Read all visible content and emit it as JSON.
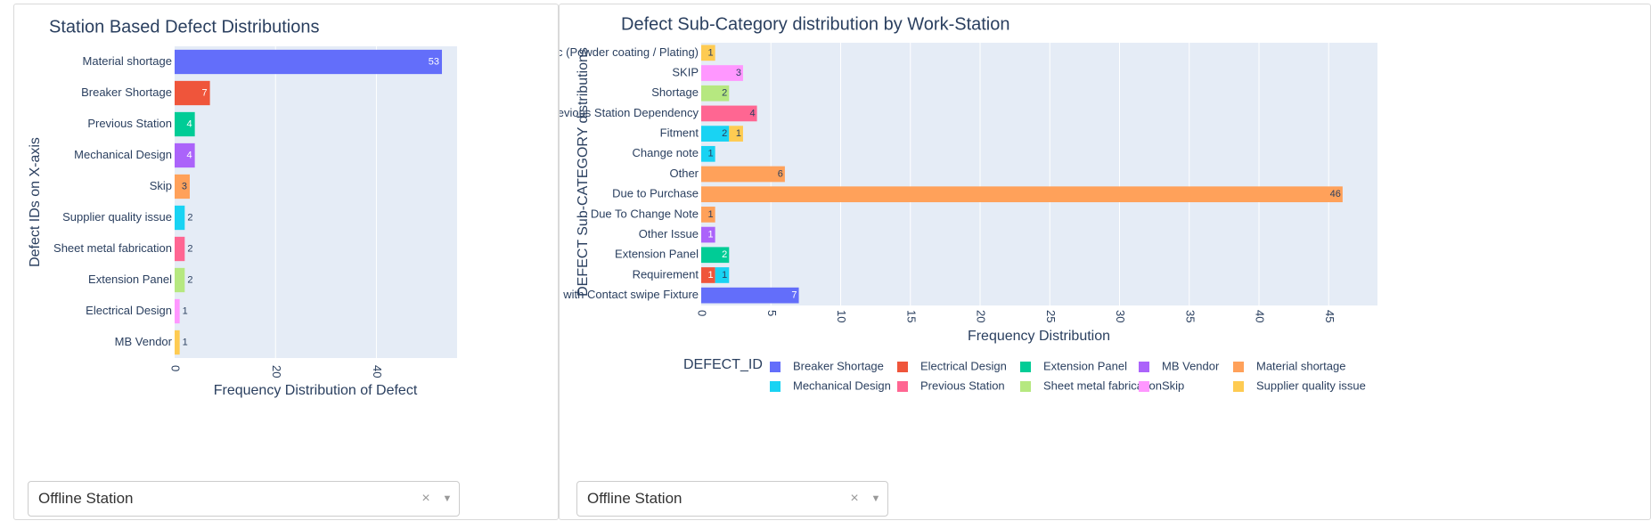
{
  "left_chart": {
    "title": "Station Based Defect Distributions",
    "xlabel": "Frequency Distribution of Defect",
    "ylabel": "Defect IDs on X-axis",
    "dropdown_value": "Offline Station"
  },
  "right_chart": {
    "title": "Defect Sub-Category distribution by Work-Station",
    "xlabel": "Frequency Distribution",
    "ylabel": "DEFECT Sub-CATEGORY distributions",
    "legend_title": "DEFECT_ID",
    "dropdown_value": "Offline Station"
  },
  "icons": {
    "clear": "×",
    "arrow": "▼"
  },
  "colors": {
    "Breaker Shortage": "#636efa",
    "Electrical Design": "#ef553b",
    "Extension Panel": "#00cc96",
    "MB Vendor": "#ab63fa",
    "Material shortage": "#ffa15a",
    "Mechanical Design": "#19d3f3",
    "Previous Station": "#ff6692",
    "Sheet metal fabrication": "#b6e880",
    "Skip": "#ff97ff",
    "Supplier quality issue": "#fecb52"
  },
  "chart_data": [
    {
      "type": "bar",
      "orientation": "horizontal",
      "title": "Station Based Defect Distributions",
      "xlabel": "Frequency Distribution of Defect",
      "ylabel": "Defect IDs on X-axis",
      "categories": [
        "Material shortage",
        "Breaker Shortage",
        "Previous Station",
        "Mechanical Design",
        "Skip",
        "Supplier quality issue",
        "Sheet metal fabrication",
        "Extension Panel",
        "Electrical Design",
        "MB Vendor"
      ],
      "values": [
        53,
        7,
        4,
        4,
        3,
        2,
        2,
        2,
        1,
        1
      ],
      "bar_colors": [
        "#636efa",
        "#ef553b",
        "#00cc96",
        "#ab63fa",
        "#ffa15a",
        "#19d3f3",
        "#ff6692",
        "#b6e880",
        "#ff97ff",
        "#fecb52"
      ],
      "xticks": [
        0,
        20,
        40
      ],
      "xlim": [
        0,
        56
      ]
    },
    {
      "type": "bar",
      "orientation": "horizontal",
      "stacked": true,
      "title": "Defect Sub-Category distribution by Work-Station",
      "xlabel": "Frequency Distribution",
      "ylabel": "DEFECT Sub-CATEGORY distributions",
      "categories": [
        "Aesthetic (Powder coating / Plating)",
        "SKIP",
        "Shortage",
        "Previous Station Dependency",
        "Fitment",
        "Change note",
        "Other",
        "Due to Purchase",
        "Due To Change Note",
        "Other Issue",
        "Extension Panel",
        "Requirement",
        "Checking with Contact swipe Fixture"
      ],
      "series": [
        {
          "name": "Breaker Shortage",
          "values": [
            0,
            0,
            0,
            0,
            0,
            0,
            0,
            0,
            0,
            0,
            0,
            0,
            7
          ]
        },
        {
          "name": "Electrical Design",
          "values": [
            0,
            0,
            0,
            0,
            0,
            0,
            0,
            0,
            0,
            0,
            0,
            1,
            0
          ]
        },
        {
          "name": "Extension Panel",
          "values": [
            0,
            0,
            0,
            0,
            0,
            0,
            0,
            0,
            0,
            0,
            2,
            0,
            0
          ]
        },
        {
          "name": "MB Vendor",
          "values": [
            0,
            0,
            0,
            0,
            0,
            0,
            0,
            0,
            0,
            1,
            0,
            0,
            0
          ]
        },
        {
          "name": "Material shortage",
          "values": [
            0,
            0,
            0,
            0,
            0,
            0,
            6,
            46,
            1,
            0,
            0,
            0,
            0
          ]
        },
        {
          "name": "Mechanical Design",
          "values": [
            0,
            0,
            0,
            0,
            2,
            1,
            0,
            0,
            0,
            0,
            0,
            1,
            0
          ]
        },
        {
          "name": "Previous Station",
          "values": [
            0,
            0,
            0,
            4,
            0,
            0,
            0,
            0,
            0,
            0,
            0,
            0,
            0
          ]
        },
        {
          "name": "Sheet metal fabrication",
          "values": [
            0,
            0,
            2,
            0,
            0,
            0,
            0,
            0,
            0,
            0,
            0,
            0,
            0
          ]
        },
        {
          "name": "Skip",
          "values": [
            0,
            3,
            0,
            0,
            0,
            0,
            0,
            0,
            0,
            0,
            0,
            0,
            0
          ]
        },
        {
          "name": "Supplier quality issue",
          "values": [
            1,
            0,
            0,
            0,
            1,
            0,
            0,
            0,
            0,
            0,
            0,
            0,
            0
          ]
        }
      ],
      "xticks": [
        0,
        5,
        10,
        15,
        20,
        25,
        30,
        35,
        40,
        45
      ],
      "xlim": [
        0,
        48.5
      ],
      "legend_title": "DEFECT_ID",
      "legend_position": "bottom"
    }
  ]
}
